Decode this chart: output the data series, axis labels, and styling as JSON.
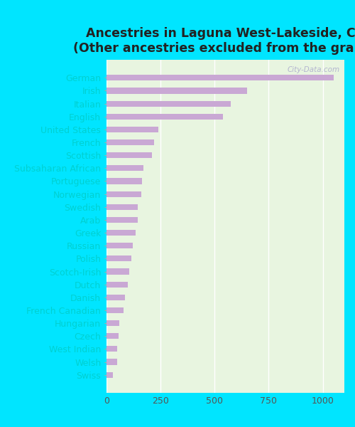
{
  "title": "Ancestries in Laguna West-Lakeside, CA\n(Other ancestries excluded from the graph)",
  "categories": [
    "German",
    "Irish",
    "Italian",
    "English",
    "United States",
    "French",
    "Scottish",
    "Subsaharan African",
    "Portuguese",
    "Norwegian",
    "Swedish",
    "Arab",
    "Greek",
    "Russian",
    "Polish",
    "Scotch-Irish",
    "Dutch",
    "Danish",
    "French Canadian",
    "Hungarian",
    "Czech",
    "West Indian",
    "Welsh",
    "Swiss"
  ],
  "values": [
    1050,
    650,
    575,
    540,
    240,
    220,
    210,
    170,
    165,
    160,
    145,
    145,
    135,
    120,
    115,
    105,
    100,
    85,
    80,
    60,
    55,
    50,
    48,
    30
  ],
  "bar_color": "#c9a8d4",
  "background_outer": "#00e5ff",
  "background_inner": "#e8f5e0",
  "title_fontsize": 12.5,
  "tick_fontsize": 9,
  "label_fontsize": 9,
  "label_color": "#00d0d0",
  "tick_color": "#555555",
  "xlim": [
    0,
    1100
  ],
  "xticks": [
    0,
    250,
    500,
    750,
    1000
  ],
  "watermark": "City-Data.com"
}
